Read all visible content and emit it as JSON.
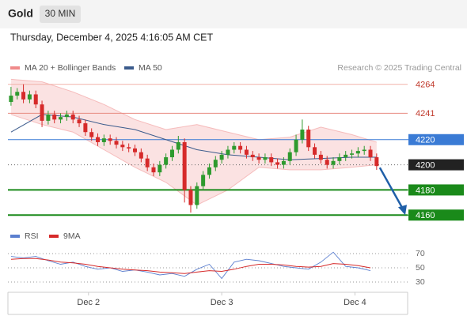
{
  "chart_data": {
    "type": "candlestick",
    "title": "Gold",
    "timeframe": "30 MIN",
    "subtitle": "Thursday, December 4, 2025 4:16:05 AM CET",
    "credit": "Research © 2025 Trading Central",
    "up_color": "#2e9a2e",
    "down_color": "#d62a2a",
    "open": [
      4250,
      4255,
      4258,
      4252,
      4256,
      4248,
      4235,
      4240,
      4236,
      4238,
      4240,
      4236,
      4233,
      4226,
      4222,
      4218,
      4221,
      4219,
      4216,
      4214,
      4213,
      4210,
      4205,
      4198,
      4194,
      4200,
      4206,
      4212,
      4218,
      4180,
      4168,
      4183,
      4192,
      4198,
      4204,
      4208,
      4212,
      4215,
      4212,
      4208,
      4206,
      4204,
      4206,
      4202,
      4200,
      4203,
      4210,
      4220,
      4228,
      4214,
      4208,
      4204,
      4200,
      4203,
      4206,
      4208,
      4209,
      4211,
      4212,
      4206
    ],
    "high": [
      4262,
      4261,
      4264,
      4259,
      4259,
      4251,
      4243,
      4243,
      4241,
      4243,
      4243,
      4239,
      4236,
      4229,
      4225,
      4224,
      4224,
      4222,
      4219,
      4217,
      4216,
      4213,
      4208,
      4201,
      4203,
      4209,
      4215,
      4223,
      4221,
      4183,
      4186,
      4195,
      4201,
      4207,
      4211,
      4215,
      4218,
      4218,
      4215,
      4211,
      4209,
      4209,
      4209,
      4205,
      4206,
      4213,
      4224,
      4236,
      4231,
      4217,
      4211,
      4207,
      4206,
      4209,
      4211,
      4212,
      4214,
      4215,
      4215,
      4209
    ],
    "low": [
      4247,
      4252,
      4249,
      4249,
      4245,
      4230,
      4232,
      4233,
      4233,
      4235,
      4233,
      4230,
      4223,
      4219,
      4215,
      4215,
      4216,
      4213,
      4211,
      4210,
      4207,
      4202,
      4195,
      4191,
      4191,
      4197,
      4203,
      4209,
      4170,
      4162,
      4165,
      4180,
      4189,
      4195,
      4201,
      4205,
      4209,
      4209,
      4205,
      4203,
      4201,
      4201,
      4199,
      4197,
      4197,
      4200,
      4207,
      4217,
      4211,
      4205,
      4201,
      4197,
      4197,
      4200,
      4203,
      4205,
      4206,
      4208,
      4203,
      4196
    ],
    "close": [
      4255,
      4258,
      4252,
      4256,
      4248,
      4235,
      4240,
      4236,
      4238,
      4240,
      4236,
      4233,
      4226,
      4222,
      4218,
      4221,
      4219,
      4216,
      4214,
      4213,
      4210,
      4205,
      4198,
      4194,
      4200,
      4206,
      4212,
      4218,
      4180,
      4168,
      4183,
      4192,
      4198,
      4204,
      4208,
      4212,
      4215,
      4212,
      4208,
      4206,
      4204,
      4206,
      4202,
      4200,
      4203,
      4210,
      4220,
      4228,
      4214,
      4208,
      4204,
      4200,
      4203,
      4206,
      4208,
      4209,
      4211,
      4212,
      4206,
      4199
    ],
    "xlim": [
      -0.5,
      64
    ],
    "xticks": [
      {
        "value": 12.5,
        "label": "Dec 2"
      },
      {
        "value": 34,
        "label": "Dec 3"
      },
      {
        "value": 55.5,
        "label": "Dec 4"
      }
    ],
    "ylim": [
      4152,
      4272
    ],
    "bollinger": {
      "name": "MA 20 + Bollinger Bands",
      "color": "#f08a8a",
      "x": [
        0,
        5,
        10,
        15,
        20,
        25,
        30,
        35,
        40,
        45,
        50,
        55,
        59
      ],
      "upper": [
        4268,
        4266,
        4258,
        4248,
        4236,
        4228,
        4232,
        4226,
        4220,
        4222,
        4230,
        4224,
        4218
      ],
      "lower": [
        4240,
        4232,
        4226,
        4212,
        4198,
        4186,
        4168,
        4180,
        4198,
        4196,
        4196,
        4198,
        4200
      ]
    },
    "ma50": {
      "name": "MA 50",
      "color": "#3b5b8c",
      "x": [
        0,
        5,
        10,
        15,
        20,
        25,
        30,
        35,
        40,
        45,
        50,
        55,
        59
      ],
      "values": [
        4226,
        4240,
        4238,
        4232,
        4228,
        4220,
        4212,
        4208,
        4206,
        4204,
        4205,
        4206,
        4206
      ]
    },
    "levels": [
      {
        "value": 4264,
        "color": "#f2b0a8",
        "style": "text",
        "text_color": "#c0392b"
      },
      {
        "value": 4241,
        "color": "#e88a80",
        "style": "text",
        "text_color": "#c0392b"
      },
      {
        "value": 4220,
        "color": "#3a7bd5",
        "style": "box",
        "text_color": "#ffffff"
      },
      {
        "value": 4200,
        "color": "#222222",
        "style": "box",
        "text_color": "#ffffff",
        "dash": "dotted"
      },
      {
        "value": 4180,
        "color": "#1a8a1a",
        "style": "box",
        "text_color": "#ffffff"
      },
      {
        "value": 4160,
        "color": "#1a8a1a",
        "style": "box",
        "text_color": "#ffffff"
      }
    ],
    "rsi": {
      "name": "RSI",
      "color": "#5b7fcf",
      "ma_name": "9MA",
      "ma_color": "#d62a2a",
      "ylim": [
        25,
        80
      ],
      "yticks": [
        70,
        50,
        30
      ],
      "x": [
        0,
        2,
        4,
        6,
        8,
        10,
        12,
        14,
        16,
        18,
        20,
        22,
        24,
        26,
        28,
        30,
        32,
        34,
        36,
        38,
        40,
        42,
        44,
        46,
        48,
        50,
        52,
        54,
        56,
        58
      ],
      "values": [
        66,
        64,
        66,
        60,
        55,
        58,
        52,
        48,
        50,
        45,
        47,
        44,
        40,
        42,
        38,
        48,
        55,
        35,
        58,
        62,
        60,
        56,
        52,
        50,
        48,
        58,
        72,
        52,
        50,
        46
      ],
      "ma": [
        62,
        63,
        63,
        61,
        58,
        57,
        55,
        52,
        50,
        48,
        47,
        46,
        44,
        43,
        42,
        44,
        46,
        45,
        48,
        52,
        55,
        55,
        54,
        52,
        51,
        52,
        56,
        55,
        53,
        50
      ]
    }
  }
}
